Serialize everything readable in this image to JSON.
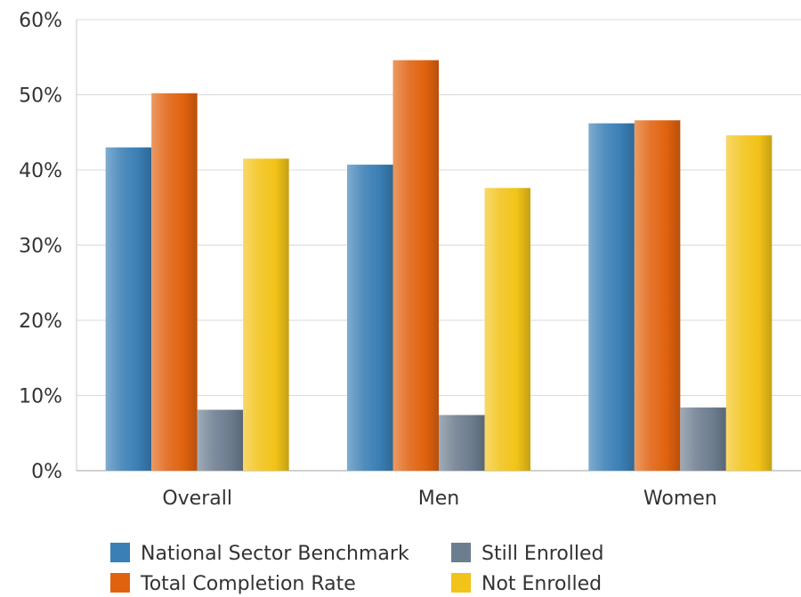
{
  "chart_data": {
    "type": "bar",
    "title": "",
    "xlabel": "",
    "ylabel": "",
    "ylim": [
      0,
      60
    ],
    "yticks": [
      0,
      10,
      20,
      30,
      40,
      50,
      60
    ],
    "ytick_format": "{v}%",
    "categories": [
      "Overall",
      "Men",
      "Women"
    ],
    "series": [
      {
        "name": "National Sector Benchmark",
        "values": [
          43,
          40.7,
          46.2
        ],
        "color": "#3a7fb5"
      },
      {
        "name": "Total Completion Rate",
        "values": [
          50.2,
          54.6,
          46.6
        ],
        "color": "#e0620f"
      },
      {
        "name": "Still Enrolled",
        "values": [
          8.1,
          7.4,
          8.4
        ],
        "color": "#6d7d90"
      },
      {
        "name": "Not Enrolled",
        "values": [
          41.5,
          37.6,
          44.6
        ],
        "color": "#f2c318"
      }
    ],
    "grid": true,
    "legend_position": "bottom"
  }
}
